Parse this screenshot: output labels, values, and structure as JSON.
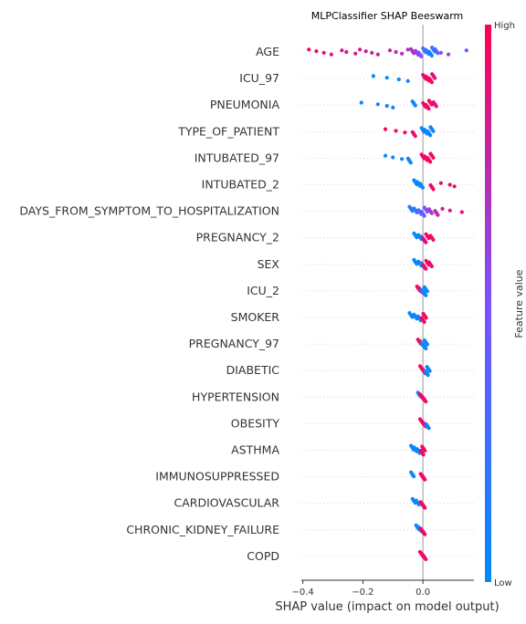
{
  "chart_data": {
    "type": "scatter",
    "title": "MLPClassifier SHAP Beeswarm",
    "xlabel": "SHAP value (impact on model output)",
    "xlim": [
      -0.405,
      0.17
    ],
    "x_ticks": [
      -0.4,
      -0.2,
      0.0
    ],
    "x_tick_labels": [
      "−0.4",
      "−0.2",
      "0.0"
    ],
    "features": [
      "AGE",
      "ICU_97",
      "PNEUMONIA",
      "TYPE_OF_PATIENT",
      "INTUBATED_97",
      "INTUBATED_2",
      "DAYS_FROM_SYMPTOM_TO_HOSPITALIZATION",
      "PREGNANCY_2",
      "SEX",
      "ICU_2",
      "SMOKER",
      "PREGNANCY_97",
      "DIABETIC",
      "HYPERTENSION",
      "OBESITY",
      "ASTHMA",
      "IMMUNOSUPPRESSED",
      "CARDIOVASCULAR",
      "CHRONIC_KIDNEY_FAILURE",
      "COPD"
    ],
    "colorbar": {
      "label": "Feature value",
      "high_label": "High",
      "low_label": "Low",
      "high_color": "#ff0052",
      "low_color": "#008bfb"
    },
    "grid": false,
    "series": [
      {
        "feature": "AGE",
        "points": [
          [
            -0.38,
            0.95
          ],
          [
            -0.355,
            0.92
          ],
          [
            -0.33,
            0.9
          ],
          [
            -0.305,
            0.88
          ],
          [
            -0.27,
            0.85
          ],
          [
            -0.255,
            0.84
          ],
          [
            -0.225,
            0.82
          ],
          [
            -0.21,
            0.83
          ],
          [
            -0.19,
            0.8
          ],
          [
            -0.17,
            0.78
          ],
          [
            -0.15,
            0.8
          ],
          [
            -0.11,
            0.77
          ],
          [
            -0.09,
            0.75
          ],
          [
            -0.07,
            0.72
          ],
          [
            -0.05,
            0.7
          ],
          [
            -0.035,
            0.68
          ],
          [
            -0.02,
            0.6
          ],
          [
            -0.01,
            0.5
          ],
          [
            0.005,
            0.3
          ],
          [
            0.015,
            0.2
          ],
          [
            0.025,
            0.1
          ],
          [
            0.035,
            0.15
          ],
          [
            0.045,
            0.35
          ],
          [
            0.06,
            0.55
          ],
          [
            0.085,
            0.6
          ],
          [
            0.145,
            0.55
          ]
        ]
      },
      {
        "feature": "ICU_97",
        "points": [
          [
            -0.165,
            0.02
          ],
          [
            -0.12,
            0.03
          ],
          [
            -0.08,
            0.05
          ],
          [
            -0.05,
            0.06
          ],
          [
            0.005,
            0.92
          ],
          [
            0.015,
            0.95
          ],
          [
            0.025,
            0.95
          ],
          [
            0.035,
            0.9
          ]
        ]
      },
      {
        "feature": "PNEUMONIA",
        "points": [
          [
            -0.205,
            0.02
          ],
          [
            -0.15,
            0.04
          ],
          [
            -0.12,
            0.05
          ],
          [
            -0.1,
            0.06
          ],
          [
            -0.03,
            0.08
          ],
          [
            0.005,
            0.92
          ],
          [
            0.015,
            0.95
          ],
          [
            0.025,
            0.95
          ],
          [
            0.04,
            0.9
          ]
        ]
      },
      {
        "feature": "TYPE_OF_PATIENT",
        "points": [
          [
            -0.125,
            0.95
          ],
          [
            -0.09,
            0.95
          ],
          [
            -0.06,
            0.93
          ],
          [
            -0.03,
            0.9
          ],
          [
            0.0,
            0.05
          ],
          [
            0.01,
            0.04
          ],
          [
            0.02,
            0.05
          ],
          [
            0.03,
            0.06
          ]
        ]
      },
      {
        "feature": "INTUBATED_97",
        "points": [
          [
            -0.125,
            0.03
          ],
          [
            -0.1,
            0.04
          ],
          [
            -0.07,
            0.05
          ],
          [
            -0.045,
            0.06
          ],
          [
            0.0,
            0.95
          ],
          [
            0.01,
            0.94
          ],
          [
            0.02,
            0.95
          ],
          [
            0.03,
            0.92
          ]
        ]
      },
      {
        "feature": "INTUBATED_2",
        "points": [
          [
            -0.025,
            0.05
          ],
          [
            -0.015,
            0.04
          ],
          [
            -0.005,
            0.05
          ],
          [
            0.03,
            0.95
          ],
          [
            0.06,
            0.95
          ],
          [
            0.09,
            0.94
          ],
          [
            0.105,
            0.92
          ]
        ]
      },
      {
        "feature": "DAYS_FROM_SYMPTOM_TO_HOSPITALIZATION",
        "points": [
          [
            -0.04,
            0.1
          ],
          [
            -0.025,
            0.2
          ],
          [
            -0.01,
            0.3
          ],
          [
            0.0,
            0.4
          ],
          [
            0.01,
            0.5
          ],
          [
            0.025,
            0.65
          ],
          [
            0.045,
            0.75
          ],
          [
            0.065,
            0.8
          ],
          [
            0.09,
            0.85
          ],
          [
            0.13,
            0.9
          ]
        ]
      },
      {
        "feature": "PREGNANCY_2",
        "points": [
          [
            -0.025,
            0.05
          ],
          [
            -0.01,
            0.06
          ],
          [
            0.0,
            0.08
          ],
          [
            0.005,
            0.95
          ],
          [
            0.015,
            0.94
          ],
          [
            0.03,
            0.92
          ]
        ]
      },
      {
        "feature": "SEX",
        "points": [
          [
            -0.025,
            0.05
          ],
          [
            -0.01,
            0.06
          ],
          [
            0.0,
            0.08
          ],
          [
            0.005,
            0.95
          ],
          [
            0.015,
            0.94
          ],
          [
            0.025,
            0.93
          ]
        ]
      },
      {
        "feature": "ICU_2",
        "points": [
          [
            -0.015,
            0.95
          ],
          [
            -0.008,
            0.94
          ],
          [
            0.0,
            0.05
          ],
          [
            0.005,
            0.06
          ],
          [
            0.01,
            0.08
          ]
        ]
      },
      {
        "feature": "SMOKER",
        "points": [
          [
            -0.04,
            0.04
          ],
          [
            -0.025,
            0.05
          ],
          [
            -0.012,
            0.06
          ],
          [
            0.0,
            0.95
          ],
          [
            0.006,
            0.94
          ]
        ]
      },
      {
        "feature": "PREGNANCY_97",
        "points": [
          [
            -0.012,
            0.95
          ],
          [
            -0.005,
            0.94
          ],
          [
            0.0,
            0.08
          ],
          [
            0.005,
            0.06
          ],
          [
            0.01,
            0.05
          ]
        ]
      },
      {
        "feature": "DIABETIC",
        "points": [
          [
            -0.005,
            0.95
          ],
          [
            0.0,
            0.94
          ],
          [
            0.004,
            0.93
          ],
          [
            0.012,
            0.06
          ],
          [
            0.018,
            0.05
          ]
        ]
      },
      {
        "feature": "HYPERTENSION",
        "points": [
          [
            -0.012,
            0.05
          ],
          [
            -0.005,
            0.95
          ],
          [
            0.0,
            0.94
          ],
          [
            0.005,
            0.93
          ]
        ]
      },
      {
        "feature": "OBESITY",
        "points": [
          [
            -0.005,
            0.95
          ],
          [
            0.0,
            0.94
          ],
          [
            0.005,
            0.93
          ],
          [
            0.015,
            0.05
          ]
        ]
      },
      {
        "feature": "ASTHMA",
        "points": [
          [
            -0.035,
            0.05
          ],
          [
            -0.025,
            0.04
          ],
          [
            -0.015,
            0.05
          ],
          [
            -0.003,
            0.95
          ],
          [
            0.002,
            0.94
          ]
        ]
      },
      {
        "feature": "IMMUNOSUPPRESSED",
        "points": [
          [
            -0.035,
            0.05
          ],
          [
            -0.003,
            0.95
          ],
          [
            0.002,
            0.94
          ]
        ]
      },
      {
        "feature": "CARDIOVASCULAR",
        "points": [
          [
            -0.03,
            0.05
          ],
          [
            -0.018,
            0.04
          ],
          [
            -0.003,
            0.95
          ],
          [
            0.002,
            0.94
          ]
        ]
      },
      {
        "feature": "CHRONIC_KIDNEY_FAILURE",
        "points": [
          [
            -0.018,
            0.05
          ],
          [
            -0.01,
            0.04
          ],
          [
            -0.003,
            0.95
          ],
          [
            0.002,
            0.94
          ]
        ]
      },
      {
        "feature": "COPD",
        "points": [
          [
            -0.005,
            0.95
          ],
          [
            0.0,
            0.94
          ],
          [
            0.005,
            0.93
          ]
        ]
      }
    ]
  }
}
